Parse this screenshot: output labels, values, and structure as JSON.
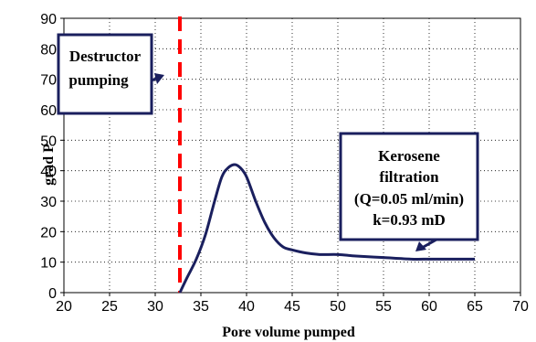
{
  "chart_data": {
    "type": "line",
    "xlabel": "Pore volume pumped",
    "ylabel": "grad P",
    "xlim": [
      20,
      70
    ],
    "ylim": [
      0,
      90
    ],
    "x_ticks": [
      "20",
      "25",
      "30",
      "35",
      "40",
      "45",
      "50",
      "55",
      "60",
      "65",
      "70"
    ],
    "y_ticks": [
      "0",
      "10",
      "20",
      "30",
      "40",
      "50",
      "60",
      "70",
      "80",
      "90"
    ],
    "grid": "dotted",
    "series": [
      {
        "color": "#1a1f5e",
        "x": [
          32.7,
          33.5,
          34.5,
          35.5,
          36.5,
          37.3,
          38.0,
          38.7,
          39.3,
          40.0,
          41.0,
          42.0,
          43.0,
          44.0,
          45.0,
          46.5,
          48.0,
          50.0,
          52.0,
          55.0,
          58.0,
          60.0,
          62.0,
          65.0
        ],
        "y": [
          0,
          5,
          11,
          19,
          30,
          38,
          41,
          42,
          41,
          38,
          30,
          23,
          18,
          15,
          14,
          13,
          12.5,
          12.5,
          12,
          11.5,
          11,
          11,
          11,
          11
        ]
      }
    ],
    "marker_line": {
      "x": 32.7,
      "color": "#ff0000",
      "style": "dashed"
    },
    "annotations": [
      {
        "lines": [
          "Destructor",
          "pumping"
        ]
      },
      {
        "lines": [
          "Kerosene",
          "filtration",
          "(Q=0.05 ml/min)",
          "k=0.93 mD"
        ]
      }
    ]
  }
}
